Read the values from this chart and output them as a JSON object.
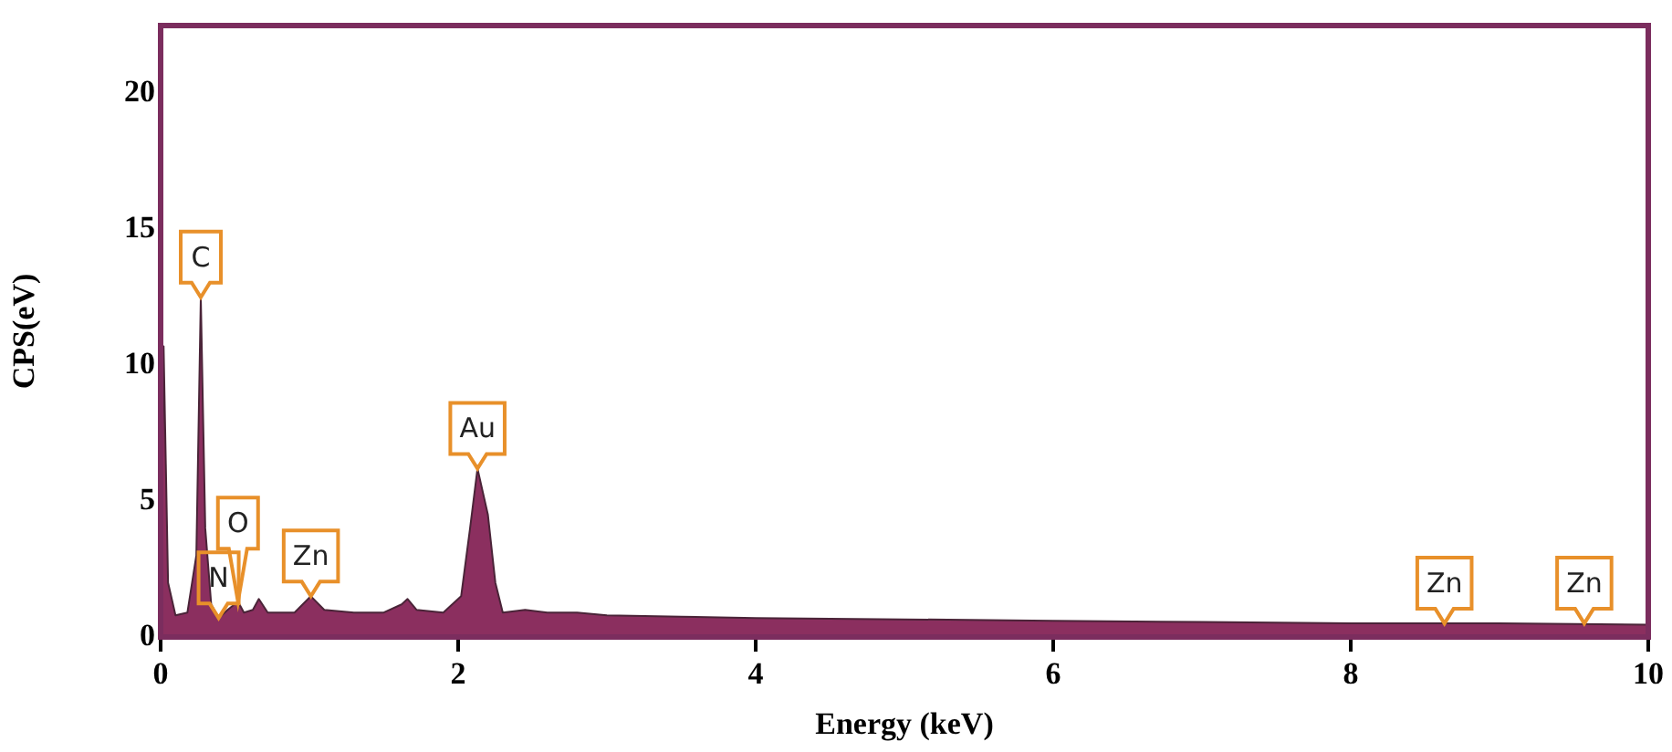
{
  "chart_data": {
    "type": "area",
    "xlabel": "Energy (keV)",
    "ylabel": "CPS(eV)",
    "xlim": [
      0,
      10
    ],
    "xticks": [
      0,
      2,
      4,
      6,
      8,
      10
    ],
    "ylim": [
      0,
      22.5
    ],
    "yticks": [
      0,
      5,
      10,
      15,
      20
    ],
    "grid": false,
    "legend": false,
    "series": [
      {
        "color": "#8b2f5f",
        "x": [
          0,
          0.02,
          0.05,
          0.1,
          0.18,
          0.24,
          0.27,
          0.3,
          0.34,
          0.39,
          0.45,
          0.52,
          0.56,
          0.62,
          0.66,
          0.72,
          0.8,
          0.9,
          1.01,
          1.1,
          1.3,
          1.5,
          1.62,
          1.66,
          1.72,
          1.9,
          2.02,
          2.08,
          2.13,
          2.2,
          2.25,
          2.3,
          2.45,
          2.6,
          2.8,
          3,
          3.5,
          4,
          5,
          6,
          7,
          8,
          9,
          10
        ],
        "values": [
          0,
          10.7,
          2,
          0.8,
          0.9,
          3,
          12.5,
          4,
          1.2,
          0.7,
          1,
          1.3,
          0.9,
          1,
          1.4,
          0.9,
          0.9,
          0.9,
          1.5,
          1,
          0.9,
          0.9,
          1.2,
          1.4,
          1,
          0.9,
          1.5,
          4,
          6.2,
          4.5,
          2,
          0.9,
          1,
          0.9,
          0.9,
          0.8,
          0.75,
          0.7,
          0.65,
          0.6,
          0.55,
          0.5,
          0.5,
          0.45
        ]
      }
    ],
    "annotations": [
      {
        "text": "C",
        "x": 0.27,
        "y": 12.5
      },
      {
        "text": "N",
        "x": 0.39,
        "y": 0.7
      },
      {
        "text": "O",
        "x": 0.52,
        "y": 1.3
      },
      {
        "text": "Zn",
        "x": 1.01,
        "y": 1.5
      },
      {
        "text": "Au",
        "x": 2.13,
        "y": 6.2
      },
      {
        "text": "Zn",
        "x": 8.63,
        "y": 0.5
      },
      {
        "text": "Zn",
        "x": 9.57,
        "y": 0.5
      }
    ]
  }
}
